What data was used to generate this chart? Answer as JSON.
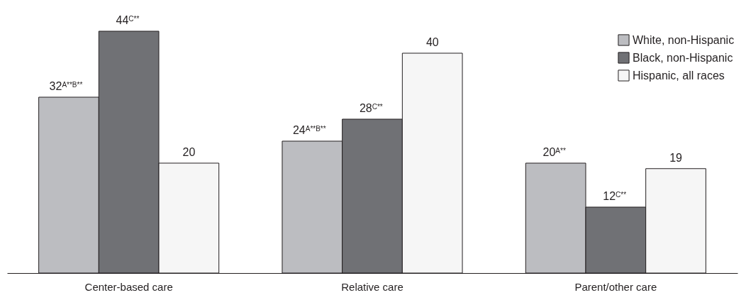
{
  "chart_data": {
    "type": "bar",
    "categories": [
      "Center-based care",
      "Relative care",
      "Parent/other care"
    ],
    "series": [
      {
        "name": "White, non-Hispanic",
        "color": "#bcbdc1",
        "values": [
          32,
          24,
          20
        ],
        "value_labels": [
          "32$^{A**B**}$",
          "24$^{A**B**}$",
          "20$^{A**}$"
        ]
      },
      {
        "name": "Black, non-Hispanic",
        "color": "#707175",
        "values": [
          44,
          28,
          12
        ],
        "value_labels": [
          "44$^{C**}$",
          "28$^{C**}$",
          "12$^{C**}$"
        ]
      },
      {
        "name": "Hispanic, all races",
        "color": "#f6f6f6",
        "values": [
          20,
          40,
          19
        ],
        "value_labels": [
          "20",
          "40",
          "19"
        ]
      }
    ],
    "legend": "top right"
  }
}
